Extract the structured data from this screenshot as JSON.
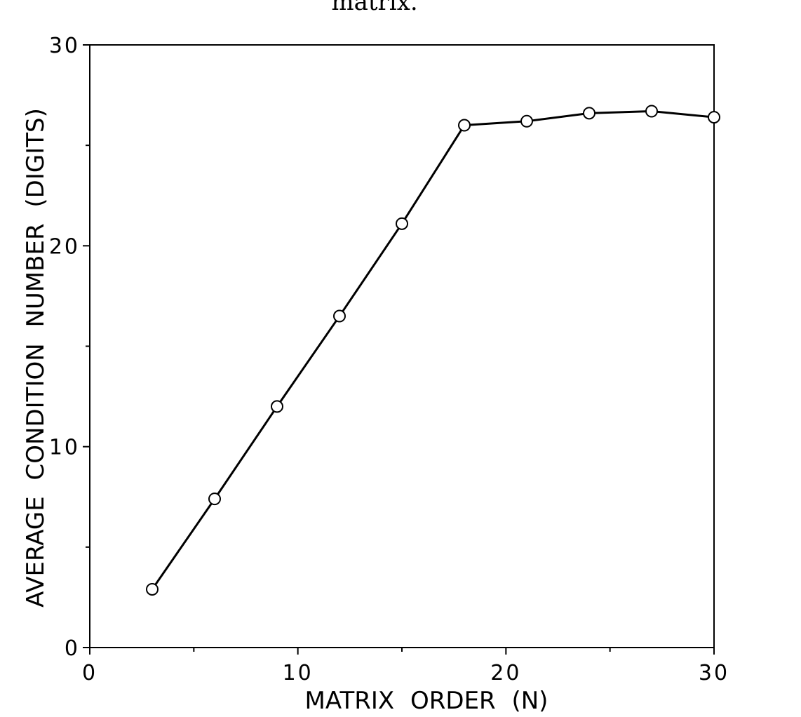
{
  "caption_fragment": "matrix.",
  "chart_data": {
    "type": "line",
    "title": "",
    "xlabel": "MATRIX ORDER (N)",
    "ylabel": "AVERAGE CONDITION NUMBER (DIGITS)",
    "xlim": [
      0,
      30
    ],
    "ylim": [
      0,
      30
    ],
    "xticks": [
      0,
      10,
      20,
      30
    ],
    "yticks": [
      0,
      10,
      20,
      30
    ],
    "xminor": [
      5,
      15,
      25
    ],
    "yminor": [
      5,
      15,
      25
    ],
    "grid": false,
    "marker": "open-circle",
    "x": [
      3,
      6,
      9,
      12,
      15,
      18,
      21,
      24,
      27,
      30
    ],
    "y": [
      2.9,
      7.4,
      12.0,
      16.5,
      21.1,
      26.0,
      26.2,
      26.6,
      26.7,
      26.4
    ]
  }
}
